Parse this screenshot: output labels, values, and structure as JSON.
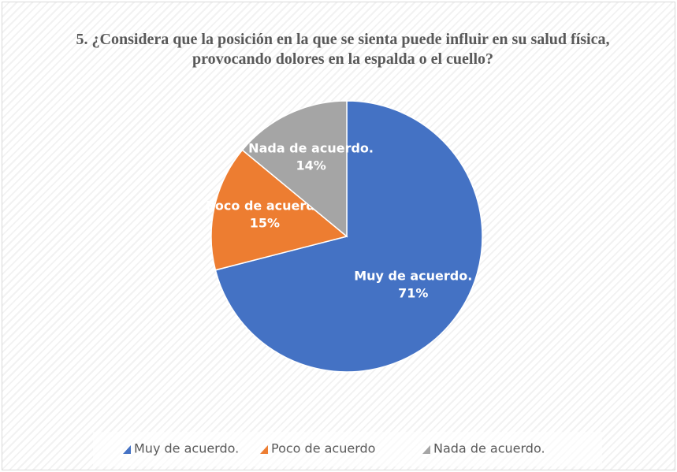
{
  "chart_data": {
    "type": "pie",
    "title": "5. ¿Considera que la posición en la que se sienta puede influir en su salud física, provocando dolores en la espalda o el cuello?",
    "categories": [
      "Muy de acuerdo.",
      "Poco de acuerdo",
      "Nada de acuerdo."
    ],
    "values": [
      71,
      15,
      14
    ],
    "value_labels": [
      "71%",
      "15%",
      "14%"
    ],
    "colors": [
      "#4472c4",
      "#ed7d31",
      "#a5a5a5"
    ],
    "legend": "bottom"
  }
}
